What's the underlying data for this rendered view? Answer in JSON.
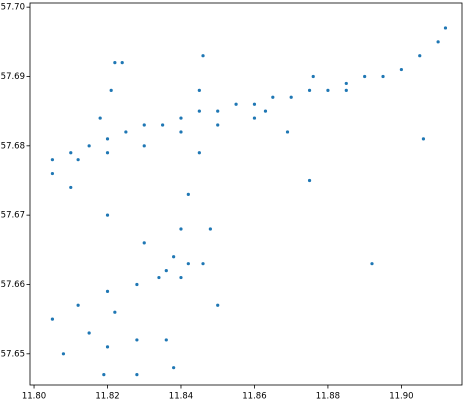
{
  "chart_data": {
    "type": "scatter",
    "color": "#1f77b4",
    "x": [
      11.805,
      11.81,
      11.815,
      11.82,
      11.825,
      11.83,
      11.835,
      11.84,
      11.845,
      11.85,
      11.855,
      11.86,
      11.865,
      11.87,
      11.875,
      11.88,
      11.885,
      11.89,
      11.895,
      11.9,
      11.905,
      11.91,
      11.912,
      11.805,
      11.812,
      11.82,
      11.83,
      11.84,
      11.85,
      11.86,
      11.845,
      11.842,
      11.84,
      11.838,
      11.834,
      11.805,
      11.812,
      11.82,
      11.828,
      11.836,
      11.842,
      11.846,
      11.808,
      11.815,
      11.822,
      11.82,
      11.819,
      11.828,
      11.828,
      11.836,
      11.838,
      11.818,
      11.821,
      11.822,
      11.824,
      11.81,
      11.82,
      11.83,
      11.84,
      11.85,
      11.846,
      11.845,
      11.863,
      11.869,
      11.876,
      11.885,
      11.906,
      11.892,
      11.875,
      11.848
    ],
    "y": [
      57.678,
      57.679,
      57.68,
      57.681,
      57.682,
      57.683,
      57.683,
      57.684,
      57.685,
      57.685,
      57.686,
      57.686,
      57.687,
      57.687,
      57.688,
      57.688,
      57.689,
      57.69,
      57.69,
      57.691,
      57.693,
      57.695,
      57.697,
      57.676,
      57.678,
      57.679,
      57.68,
      57.682,
      57.683,
      57.684,
      57.679,
      57.673,
      57.668,
      57.664,
      57.661,
      57.655,
      57.657,
      57.659,
      57.66,
      57.662,
      57.663,
      57.663,
      57.65,
      57.653,
      57.656,
      57.651,
      57.647,
      57.652,
      57.647,
      57.652,
      57.648,
      57.684,
      57.688,
      57.692,
      57.692,
      57.674,
      57.67,
      57.666,
      57.661,
      57.657,
      57.693,
      57.688,
      57.685,
      57.682,
      57.69,
      57.688,
      57.681,
      57.663,
      57.675,
      57.668
    ],
    "xlim": [
      11.7989,
      11.9165
    ],
    "ylim": [
      57.6455,
      57.7006
    ],
    "xticks": [
      {
        "value": 11.8,
        "label": "11.80"
      },
      11.82,
      11.84,
      11.86,
      11.88,
      {
        "value": 11.9,
        "label": "11.90"
      }
    ],
    "yticks": [
      57.65,
      57.66,
      57.67,
      57.68,
      57.69,
      {
        "value": 57.7,
        "label": "57.70"
      }
    ]
  }
}
